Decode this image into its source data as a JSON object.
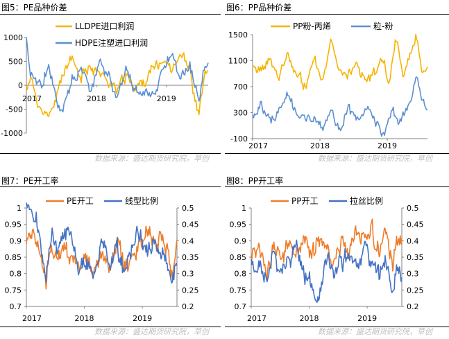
{
  "source_label": "数据来源：盛达期货研究院，草创",
  "colors": {
    "orange": "#f5b400",
    "blue": "#5b8fd0",
    "orange2": "#ee7d2a",
    "blue2": "#4472c4"
  },
  "chart_data": [
    {
      "id": "fig5",
      "figure_title": "图5：PE品种价差",
      "type": "line",
      "x_ticks": [
        "2017",
        "2018",
        "2019"
      ],
      "ylim": [
        -1000,
        1000
      ],
      "y_ticks": [
        "1000",
        "500",
        "0",
        "-500",
        "-1000"
      ],
      "legend": "top",
      "series": [
        {
          "name": "LLDPE进口利润",
          "color": "#f5b400",
          "anchors": [
            [
              0,
              -100
            ],
            [
              0.02,
              200
            ],
            [
              0.05,
              -200
            ],
            [
              0.08,
              -500
            ],
            [
              0.12,
              -750
            ],
            [
              0.16,
              -300
            ],
            [
              0.2,
              250
            ],
            [
              0.25,
              500
            ],
            [
              0.3,
              150
            ],
            [
              0.35,
              450
            ],
            [
              0.4,
              250
            ],
            [
              0.45,
              100
            ],
            [
              0.5,
              -100
            ],
            [
              0.55,
              200
            ],
            [
              0.6,
              -50
            ],
            [
              0.65,
              100
            ],
            [
              0.7,
              350
            ],
            [
              0.75,
              500
            ],
            [
              0.8,
              400
            ],
            [
              0.85,
              700
            ],
            [
              0.9,
              300
            ],
            [
              0.93,
              -350
            ],
            [
              0.95,
              -600
            ],
            [
              0.98,
              250
            ],
            [
              1,
              300
            ]
          ]
        },
        {
          "name": "HDPE注塑进口利润",
          "color": "#5b8fd0",
          "anchors": [
            [
              0,
              900
            ],
            [
              0.02,
              150
            ],
            [
              0.05,
              100
            ],
            [
              0.08,
              -50
            ],
            [
              0.12,
              400
            ],
            [
              0.16,
              -150
            ],
            [
              0.2,
              -650
            ],
            [
              0.25,
              200
            ],
            [
              0.3,
              300
            ],
            [
              0.35,
              -100
            ],
            [
              0.4,
              450
            ],
            [
              0.45,
              200
            ],
            [
              0.5,
              -250
            ],
            [
              0.55,
              300
            ],
            [
              0.6,
              -150
            ],
            [
              0.65,
              -200
            ],
            [
              0.7,
              -200
            ],
            [
              0.75,
              300
            ],
            [
              0.8,
              600
            ],
            [
              0.85,
              200
            ],
            [
              0.9,
              400
            ],
            [
              0.93,
              -100
            ],
            [
              0.95,
              -300
            ],
            [
              0.98,
              300
            ],
            [
              1,
              400
            ]
          ]
        }
      ]
    },
    {
      "id": "fig6",
      "figure_title": "图6：PP品种价差",
      "type": "line",
      "x_ticks": [
        "2017",
        "2018",
        "2019"
      ],
      "ylim": [
        -100,
        1500
      ],
      "y_ticks": [
        "1500",
        "1100",
        "700",
        "300",
        "-100"
      ],
      "legend": "top",
      "series": [
        {
          "name": "PP粉-丙烯",
          "color": "#f5b400",
          "anchors": [
            [
              0,
              1000
            ],
            [
              0.05,
              900
            ],
            [
              0.1,
              1150
            ],
            [
              0.15,
              800
            ],
            [
              0.2,
              1200
            ],
            [
              0.25,
              900
            ],
            [
              0.3,
              700
            ],
            [
              0.35,
              1100
            ],
            [
              0.4,
              800
            ],
            [
              0.45,
              1450
            ],
            [
              0.5,
              1000
            ],
            [
              0.55,
              900
            ],
            [
              0.6,
              1050
            ],
            [
              0.65,
              750
            ],
            [
              0.7,
              900
            ],
            [
              0.75,
              1100
            ],
            [
              0.78,
              700
            ],
            [
              0.82,
              1450
            ],
            [
              0.86,
              900
            ],
            [
              0.9,
              1200
            ],
            [
              0.94,
              1450
            ],
            [
              0.97,
              900
            ],
            [
              1,
              1050
            ]
          ]
        },
        {
          "name": "粒-粉",
          "color": "#5b8fd0",
          "anchors": [
            [
              0,
              250
            ],
            [
              0.05,
              400
            ],
            [
              0.1,
              150
            ],
            [
              0.15,
              350
            ],
            [
              0.2,
              500
            ],
            [
              0.25,
              300
            ],
            [
              0.3,
              150
            ],
            [
              0.35,
              250
            ],
            [
              0.4,
              100
            ],
            [
              0.45,
              300
            ],
            [
              0.5,
              0
            ],
            [
              0.55,
              350
            ],
            [
              0.6,
              200
            ],
            [
              0.65,
              350
            ],
            [
              0.7,
              200
            ],
            [
              0.75,
              0
            ],
            [
              0.8,
              300
            ],
            [
              0.85,
              150
            ],
            [
              0.9,
              450
            ],
            [
              0.94,
              800
            ],
            [
              0.97,
              500
            ],
            [
              1,
              350
            ]
          ]
        }
      ]
    },
    {
      "id": "fig7",
      "figure_title": "图7：PE开工率",
      "type": "line",
      "x_ticks": [
        "2017",
        "2018",
        "2019"
      ],
      "ylim": [
        0.7,
        1
      ],
      "y_ticks": [
        "1",
        "0.95",
        "0.9",
        "0.85",
        "0.8",
        "0.75",
        "0.7"
      ],
      "y2lim": [
        0.2,
        0.5
      ],
      "y2_ticks": [
        "0.5",
        "0.45",
        "0.4",
        "0.35",
        "0.3",
        "0.25",
        "0.2"
      ],
      "legend": "top",
      "series": [
        {
          "name": "PE开工",
          "color": "#ee7d2a",
          "axis": "left",
          "anchors": [
            [
              0,
              0.88
            ],
            [
              0.05,
              0.9
            ],
            [
              0.1,
              0.85
            ],
            [
              0.13,
              0.77
            ],
            [
              0.16,
              0.88
            ],
            [
              0.2,
              0.84
            ],
            [
              0.25,
              0.9
            ],
            [
              0.3,
              0.84
            ],
            [
              0.35,
              0.83
            ],
            [
              0.4,
              0.85
            ],
            [
              0.45,
              0.8
            ],
            [
              0.5,
              0.87
            ],
            [
              0.55,
              0.8
            ],
            [
              0.6,
              0.9
            ],
            [
              0.65,
              0.82
            ],
            [
              0.7,
              0.85
            ],
            [
              0.75,
              0.9
            ],
            [
              0.8,
              0.93
            ],
            [
              0.85,
              0.88
            ],
            [
              0.9,
              0.92
            ],
            [
              0.94,
              0.86
            ],
            [
              0.97,
              0.78
            ],
            [
              1,
              0.9
            ]
          ]
        },
        {
          "name": "线型比例",
          "color": "#4472c4",
          "axis": "right",
          "anchors": [
            [
              0,
              0.5
            ],
            [
              0.04,
              0.48
            ],
            [
              0.07,
              0.47
            ],
            [
              0.1,
              0.36
            ],
            [
              0.13,
              0.3
            ],
            [
              0.17,
              0.42
            ],
            [
              0.2,
              0.38
            ],
            [
              0.25,
              0.44
            ],
            [
              0.3,
              0.4
            ],
            [
              0.35,
              0.3
            ],
            [
              0.4,
              0.34
            ],
            [
              0.45,
              0.28
            ],
            [
              0.5,
              0.4
            ],
            [
              0.55,
              0.32
            ],
            [
              0.6,
              0.38
            ],
            [
              0.65,
              0.3
            ],
            [
              0.7,
              0.38
            ],
            [
              0.75,
              0.42
            ],
            [
              0.8,
              0.37
            ],
            [
              0.85,
              0.39
            ],
            [
              0.9,
              0.36
            ],
            [
              0.94,
              0.33
            ],
            [
              0.97,
              0.29
            ],
            [
              1,
              0.34
            ]
          ]
        }
      ]
    },
    {
      "id": "fig8",
      "figure_title": "图8：PP开工率",
      "type": "line",
      "x_ticks": [
        "2017",
        "2018",
        "2019"
      ],
      "ylim": [
        0.7,
        1
      ],
      "y_ticks": [
        "1",
        "0.95",
        "0.9",
        "0.85",
        "0.8",
        "0.75",
        "0.7"
      ],
      "y2lim": [
        0.2,
        0.5
      ],
      "y2_ticks": [
        "0.5",
        "0.45",
        "0.4",
        "0.35",
        "0.3",
        "0.25",
        "0.2"
      ],
      "legend": "top",
      "series": [
        {
          "name": "PP开工",
          "color": "#ee7d2a",
          "axis": "left",
          "anchors": [
            [
              0,
              0.85
            ],
            [
              0.05,
              0.9
            ],
            [
              0.1,
              0.8
            ],
            [
              0.15,
              0.88
            ],
            [
              0.2,
              0.84
            ],
            [
              0.25,
              0.9
            ],
            [
              0.3,
              0.85
            ],
            [
              0.35,
              0.92
            ],
            [
              0.4,
              0.86
            ],
            [
              0.45,
              0.9
            ],
            [
              0.5,
              0.88
            ],
            [
              0.55,
              0.83
            ],
            [
              0.6,
              0.9
            ],
            [
              0.65,
              0.88
            ],
            [
              0.7,
              0.92
            ],
            [
              0.75,
              0.9
            ],
            [
              0.8,
              0.94
            ],
            [
              0.85,
              0.86
            ],
            [
              0.9,
              0.92
            ],
            [
              0.94,
              0.8
            ],
            [
              0.97,
              0.9
            ],
            [
              1,
              0.88
            ]
          ]
        },
        {
          "name": "拉丝比例",
          "color": "#4472c4",
          "axis": "right",
          "anchors": [
            [
              0,
              0.33
            ],
            [
              0.05,
              0.32
            ],
            [
              0.1,
              0.28
            ],
            [
              0.15,
              0.36
            ],
            [
              0.2,
              0.3
            ],
            [
              0.25,
              0.34
            ],
            [
              0.3,
              0.38
            ],
            [
              0.35,
              0.3
            ],
            [
              0.4,
              0.25
            ],
            [
              0.45,
              0.22
            ],
            [
              0.5,
              0.36
            ],
            [
              0.55,
              0.3
            ],
            [
              0.6,
              0.34
            ],
            [
              0.65,
              0.36
            ],
            [
              0.7,
              0.32
            ],
            [
              0.75,
              0.38
            ],
            [
              0.8,
              0.34
            ],
            [
              0.85,
              0.3
            ],
            [
              0.9,
              0.33
            ],
            [
              0.94,
              0.25
            ],
            [
              0.97,
              0.32
            ],
            [
              1,
              0.29
            ]
          ]
        }
      ]
    }
  ]
}
